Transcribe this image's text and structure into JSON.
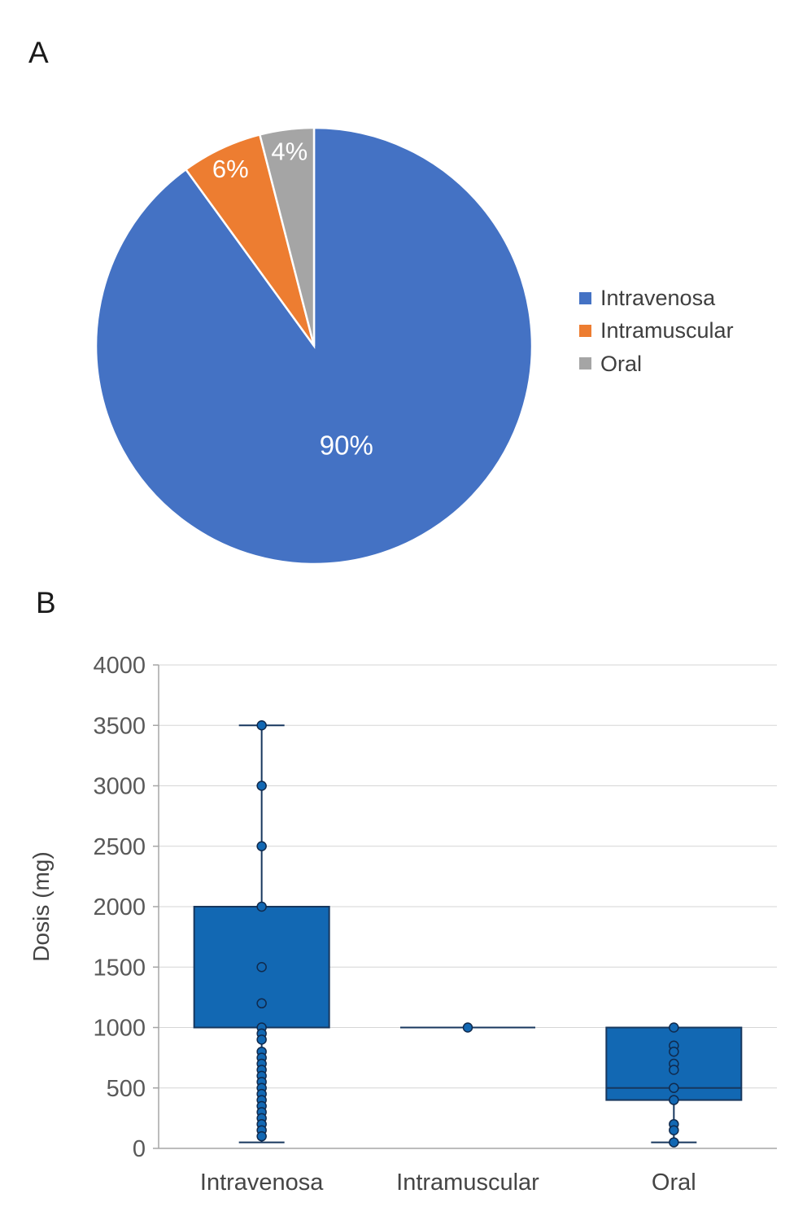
{
  "panels": {
    "a": "A",
    "b": "B"
  },
  "chart_data": [
    {
      "type": "pie",
      "title": "",
      "labels": [
        "Intravenosa",
        "Intramuscular",
        "Oral"
      ],
      "values": [
        90,
        6,
        4
      ],
      "data_labels": [
        "90%",
        "6%",
        "4%"
      ],
      "colors": [
        "#4472C4",
        "#ED7D31",
        "#A5A5A5"
      ],
      "label_color": "#FFFFFF",
      "legend_position": "right",
      "start_angle_deg": -90,
      "direction": "clockwise"
    },
    {
      "type": "boxplot",
      "title": "",
      "categories": [
        "Intravenosa",
        "Intramuscular",
        "Oral"
      ],
      "xlabel": "",
      "ylabel": "Dosis (mg)",
      "ylim": [
        0,
        4000
      ],
      "ytick_step": 500,
      "grid": true,
      "box_fill": "#1268B3",
      "box_stroke": "#17375E",
      "point_fill": "#1268B3",
      "point_stroke": "#102A4D",
      "series": [
        {
          "category": "Intravenosa",
          "whisker_low": 50,
          "q1": 1000,
          "median": 1000,
          "q3": 2000,
          "whisker_high": 3500,
          "points": [
            3500,
            3000,
            2500,
            2000,
            1500,
            1200,
            1000,
            950,
            900,
            800,
            750,
            700,
            650,
            600,
            550,
            500,
            450,
            400,
            350,
            300,
            250,
            200,
            150,
            100
          ]
        },
        {
          "category": "Intramuscular",
          "whisker_low": 1000,
          "q1": 1000,
          "median": 1000,
          "q3": 1000,
          "whisker_high": 1000,
          "points": [
            1000
          ]
        },
        {
          "category": "Oral",
          "whisker_low": 50,
          "q1": 400,
          "median": 500,
          "q3": 1000,
          "whisker_high": 1000,
          "points": [
            1000,
            850,
            800,
            700,
            650,
            500,
            400,
            200,
            150,
            50
          ]
        }
      ]
    }
  ]
}
